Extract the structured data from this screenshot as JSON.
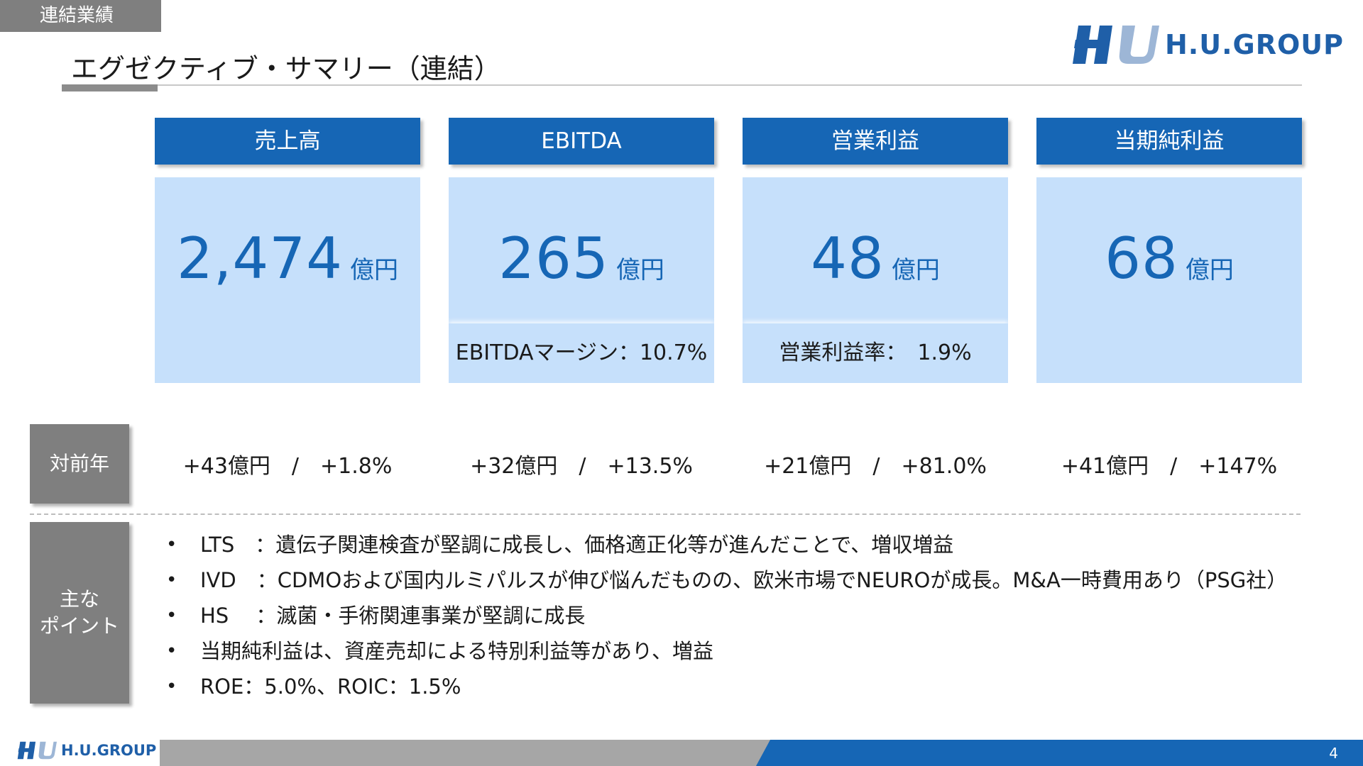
{
  "header": {
    "section_tag": "連結業績",
    "title": "エグゼクティブ・サマリー（連結）",
    "logo_text": "H.U.GROUP"
  },
  "kpis": [
    {
      "label": "売上高",
      "value": "2,474",
      "unit": "億円",
      "sub": ""
    },
    {
      "label": "EBITDA",
      "value": "265",
      "unit": "億円",
      "sub": "EBITDAマージン：10.7%"
    },
    {
      "label": "営業利益",
      "value": "48",
      "unit": "億円",
      "sub": "営業利益率：　1.9%"
    },
    {
      "label": "当期純利益",
      "value": "68",
      "unit": "億円",
      "sub": ""
    }
  ],
  "yoy": {
    "label": "対前年",
    "values": [
      "+43億円　/　+1.8%",
      "+32億円　/　+13.5%",
      "+21億円　/　+81.0%",
      "+41億円　/　+147%"
    ]
  },
  "points": {
    "label_line1": "主な",
    "label_line2": "ポイント",
    "bullet": "•",
    "items": [
      "LTS　：遺伝子関連検査が堅調に成長し、価格適正化等が進んだことで、増収増益",
      "IVD　：CDMOおよび国内ルミパルスが伸び悩んだものの、欧米市場でNEUROが成長。M&A一時費用あり（PSG社）",
      "HS　 ：滅菌・手術関連事業が堅調に成長",
      "当期純利益は、資産売却による特別利益等があり、増益",
      "ROE：5.0%、ROIC：1.5%"
    ]
  },
  "footer": {
    "logo_text": "H.U.GROUP",
    "page_number": "4"
  },
  "colors": {
    "accent_blue": "#1666b5",
    "light_blue": "#c6e0fb",
    "gray": "#7f7f7f"
  }
}
